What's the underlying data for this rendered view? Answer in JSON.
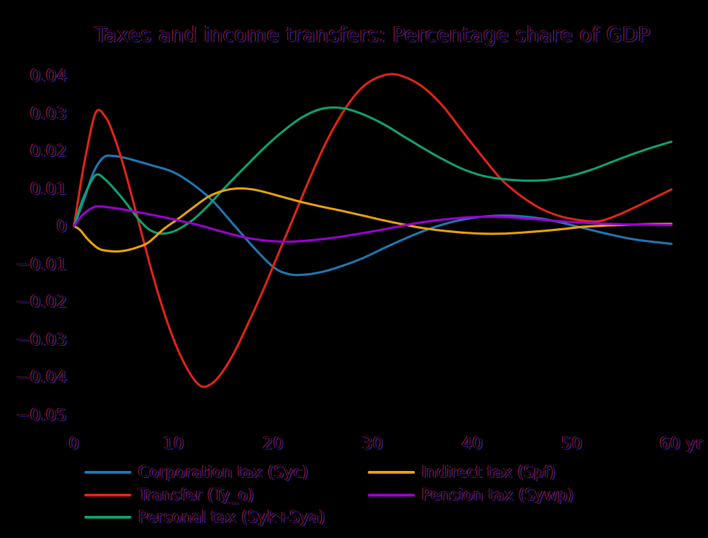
{
  "title": "Taxes and income transfers: Percentage share of GDP",
  "colors": {
    "background": "#000000",
    "text_core": "#040408",
    "text_fringe_left": "#8c1030",
    "text_fringe_right": "#3a1d96",
    "blue": "#1f77b4",
    "red": "#e02419",
    "green": "#10a170",
    "orange": "#e8a20c",
    "purple": "#9b00d0"
  },
  "chart_data": {
    "type": "line",
    "title": "Taxes and income transfers: Percentage share of GDP",
    "xlabel": "yr",
    "ylabel": "",
    "xlim": [
      0,
      60
    ],
    "ylim": [
      -0.05,
      0.045
    ],
    "grid": false,
    "legend_position": "bottom",
    "x_ticks": [
      0,
      10,
      20,
      30,
      40,
      50,
      60
    ],
    "x_tick_labels": [
      "0",
      "10",
      "20",
      "30",
      "40",
      "50",
      "60 yr"
    ],
    "y_ticks": [
      0.04,
      0.03,
      0.02,
      0.01,
      0,
      -0.01,
      -0.02,
      -0.03,
      -0.04,
      -0.05
    ],
    "y_tick_labels": [
      "0.04",
      "0.03",
      "0.02",
      "0.01",
      "0",
      "−0.01",
      "−0.02",
      "−0.03",
      "−0.04",
      "−0.05"
    ],
    "series": [
      {
        "name": "Corporation tax (Syc)",
        "color_key": "blue",
        "x": [
          0,
          1,
          2,
          3,
          4,
          5,
          6,
          8,
          10,
          12,
          14,
          16,
          18,
          20,
          21.5,
          23,
          25,
          27,
          29,
          31,
          33,
          35,
          37,
          39,
          41,
          43,
          45,
          47,
          49,
          51,
          53,
          55,
          57,
          60
        ],
        "y": [
          0,
          0.007,
          0.0145,
          0.0183,
          0.0186,
          0.0182,
          0.0175,
          0.016,
          0.0143,
          0.011,
          0.0065,
          0.0005,
          -0.0055,
          -0.0108,
          -0.0127,
          -0.0129,
          -0.0121,
          -0.0105,
          -0.0085,
          -0.006,
          -0.0036,
          -0.0014,
          0.0004,
          0.0017,
          0.0025,
          0.0028,
          0.0026,
          0.002,
          0.0009,
          -0.0004,
          -0.0017,
          -0.0029,
          -0.0038,
          -0.0047
        ]
      },
      {
        "name": "Transfer (Ty_o)",
        "color_key": "red",
        "x": [
          0,
          0.6,
          1.2,
          2.2,
          3.2,
          4,
          5,
          6,
          7,
          8,
          9,
          10,
          11,
          12,
          12.8,
          13.6,
          14.6,
          16,
          17.5,
          19,
          20.5,
          22,
          23.5,
          25,
          26.5,
          28,
          29.5,
          31.4,
          33,
          35,
          37,
          39,
          41,
          43,
          45,
          47,
          49,
          51,
          52.7,
          54.5,
          56.5,
          58.5,
          60
        ],
        "y": [
          0,
          0.01,
          0.019,
          0.0302,
          0.0288,
          0.024,
          0.0158,
          0.006,
          -0.004,
          -0.0138,
          -0.0225,
          -0.03,
          -0.036,
          -0.0405,
          -0.0425,
          -0.0422,
          -0.0398,
          -0.034,
          -0.0258,
          -0.017,
          -0.0075,
          0.002,
          0.0115,
          0.0205,
          0.028,
          0.034,
          0.038,
          0.0402,
          0.0398,
          0.037,
          0.032,
          0.0252,
          0.0185,
          0.0122,
          0.0078,
          0.0045,
          0.0025,
          0.0015,
          0.0013,
          0.0028,
          0.0052,
          0.0078,
          0.0097
        ]
      },
      {
        "name": "Personal tax (Syk+Sya)",
        "color_key": "green",
        "x": [
          0,
          0.6,
          1.2,
          2.2,
          3.2,
          4.5,
          5.5,
          6.5,
          7.5,
          8.5,
          9.5,
          10.5,
          12,
          13.5,
          15,
          17,
          19,
          21,
          23,
          25,
          27,
          29,
          31,
          33,
          35,
          37,
          39,
          41,
          43,
          45,
          46.5,
          48,
          50,
          52,
          54,
          56,
          58,
          60
        ],
        "y": [
          0,
          0.005,
          0.009,
          0.0136,
          0.0122,
          0.0085,
          0.0052,
          0.0018,
          -0.0008,
          -0.0019,
          -0.0018,
          -0.0008,
          0.0018,
          0.0055,
          0.0098,
          0.0152,
          0.0205,
          0.0252,
          0.029,
          0.0312,
          0.0313,
          0.0297,
          0.0272,
          0.024,
          0.0208,
          0.0178,
          0.0152,
          0.0134,
          0.0125,
          0.0121,
          0.0121,
          0.0124,
          0.0134,
          0.015,
          0.017,
          0.019,
          0.0208,
          0.0224
        ]
      },
      {
        "name": "Indirect tax (Spf)",
        "color_key": "orange",
        "x": [
          0,
          0.6,
          1.5,
          2.5,
          3.5,
          4.5,
          5.5,
          6.5,
          7.5,
          9,
          10.5,
          12,
          13.5,
          15,
          16.5,
          18,
          19.5,
          21,
          23,
          25,
          27,
          29,
          31,
          33,
          35,
          37,
          39,
          41,
          43,
          45,
          47,
          49,
          51,
          53,
          55,
          57,
          60
        ],
        "y": [
          0,
          -0.001,
          -0.0038,
          -0.006,
          -0.0066,
          -0.0067,
          -0.0063,
          -0.0055,
          -0.0043,
          -0.0008,
          0.002,
          0.005,
          0.0078,
          0.0094,
          0.01,
          0.0097,
          0.0088,
          0.0077,
          0.0063,
          0.0051,
          0.004,
          0.0028,
          0.0016,
          0.0005,
          -0.0005,
          -0.0012,
          -0.0017,
          -0.002,
          -0.002,
          -0.0017,
          -0.0013,
          -0.0008,
          -0.0002,
          0.0001,
          0.0003,
          0.0005,
          0.0006
        ]
      },
      {
        "name": "Pension tax (Sywp)",
        "color_key": "purple",
        "x": [
          0,
          0.6,
          1.2,
          2.2,
          3.5,
          5,
          6.5,
          8,
          9.5,
          11,
          12.5,
          14,
          15.5,
          17,
          18.5,
          20,
          22,
          24,
          26,
          28,
          30,
          32,
          34,
          36,
          38,
          40,
          42,
          44,
          46,
          48,
          50,
          52,
          55,
          60
        ],
        "y": [
          0,
          0.0022,
          0.0038,
          0.0052,
          0.005,
          0.0044,
          0.0037,
          0.0029,
          0.0021,
          0.0012,
          0.0003,
          -0.0008,
          -0.0019,
          -0.0029,
          -0.0036,
          -0.004,
          -0.0041,
          -0.0037,
          -0.0031,
          -0.0023,
          -0.0014,
          -0.0004,
          0.0006,
          0.0014,
          0.002,
          0.0024,
          0.0025,
          0.0023,
          0.0019,
          0.0015,
          0.0011,
          0.0008,
          0.0005,
          0.0003
        ]
      }
    ],
    "legend_columns": [
      [
        0,
        1,
        2
      ],
      [
        3,
        4
      ]
    ]
  }
}
